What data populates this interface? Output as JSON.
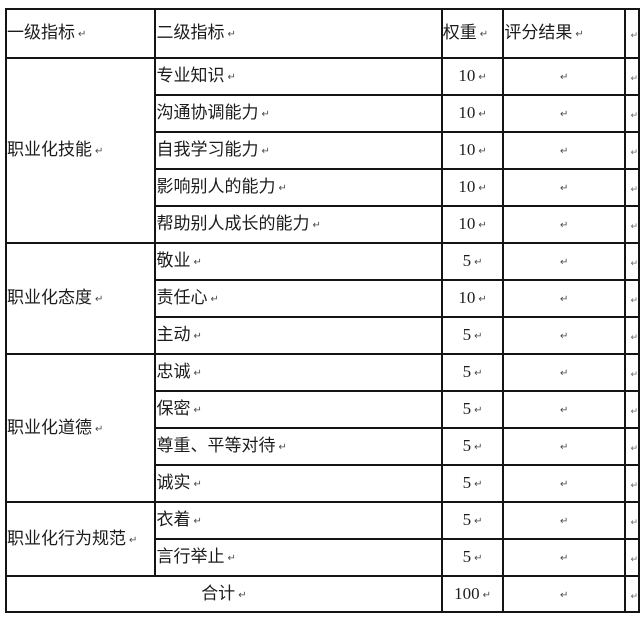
{
  "marks": {
    "paragraph_mark": "↵",
    "row_end_mark": "↵"
  },
  "colors": {
    "border": "#141414",
    "text": "#1c1c1c",
    "mark": "#4a4a4a",
    "background": "#ffffff"
  },
  "table": {
    "headers": [
      {
        "label": "一级指标"
      },
      {
        "label": "二级指标"
      },
      {
        "label": "权重"
      },
      {
        "label": "评分结果"
      }
    ],
    "sections": [
      {
        "category": "职业化技能",
        "rows": [
          {
            "indicator": "专业知识",
            "weight": "10",
            "score": ""
          },
          {
            "indicator": "沟通协调能力",
            "weight": "10",
            "score": ""
          },
          {
            "indicator": "自我学习能力",
            "weight": "10",
            "score": ""
          },
          {
            "indicator": "影响别人的能力",
            "weight": "10",
            "score": ""
          },
          {
            "indicator": "帮助别人成长的能力",
            "weight": "10",
            "score": ""
          }
        ]
      },
      {
        "category": "职业化态度",
        "rows": [
          {
            "indicator": "敬业",
            "weight": "5",
            "score": ""
          },
          {
            "indicator": "责任心",
            "weight": "10",
            "score": ""
          },
          {
            "indicator": "主动",
            "weight": "5",
            "score": ""
          }
        ]
      },
      {
        "category": "职业化道德",
        "rows": [
          {
            "indicator": "忠诚",
            "weight": "5",
            "score": ""
          },
          {
            "indicator": "保密",
            "weight": "5",
            "score": ""
          },
          {
            "indicator": "尊重、平等对待",
            "weight": "5",
            "score": ""
          },
          {
            "indicator": "诚实",
            "weight": "5",
            "score": ""
          }
        ]
      },
      {
        "category": "职业化行为规范",
        "rows": [
          {
            "indicator": "衣着",
            "weight": "5",
            "score": ""
          },
          {
            "indicator": "言行举止",
            "weight": "5",
            "score": ""
          }
        ]
      }
    ],
    "total_row": {
      "label": "合计",
      "weight": "100",
      "score": ""
    }
  }
}
